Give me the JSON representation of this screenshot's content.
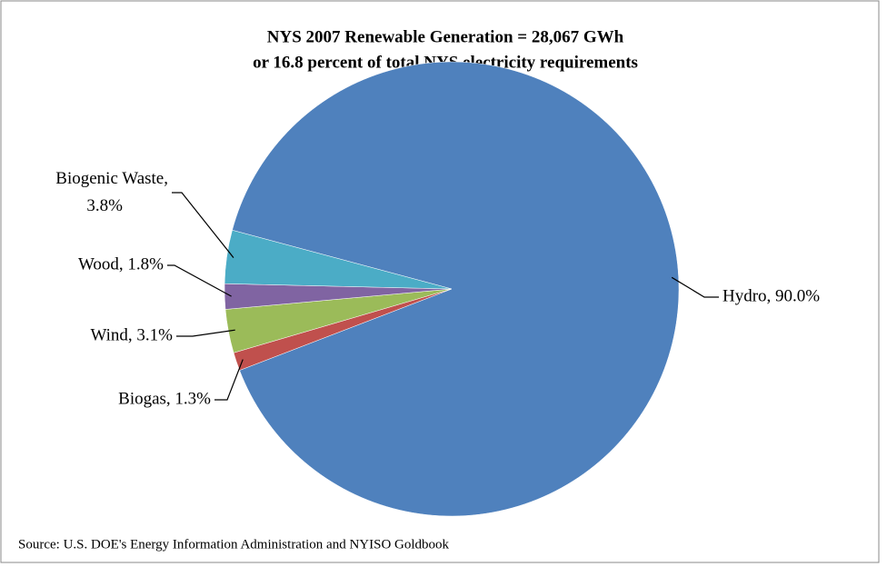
{
  "chart_data": {
    "type": "pie",
    "title": [
      "NYS 2007 Renewable  Generation = 28,067 GWh",
      "or 16.8 percent of total NYS  electricity requirements"
    ],
    "categories": [
      "Hydro",
      "Biogas",
      "Wind",
      "Wood",
      "Biogenic Waste"
    ],
    "values": [
      90.0,
      1.3,
      3.1,
      1.8,
      3.8
    ],
    "value_labels": [
      "Hydro, 90.0%",
      "Biogas, 1.3%",
      "Wind, 3.1%",
      "Wood, 1.8%",
      "Biogenic Waste, 3.8%"
    ],
    "colors": [
      "#4f81bd",
      "#c0504d",
      "#9bbb59",
      "#8064a2",
      "#4bacc6"
    ],
    "source": "Source: U.S. DOE's Energy Information Administration and NYISO Goldbook"
  }
}
